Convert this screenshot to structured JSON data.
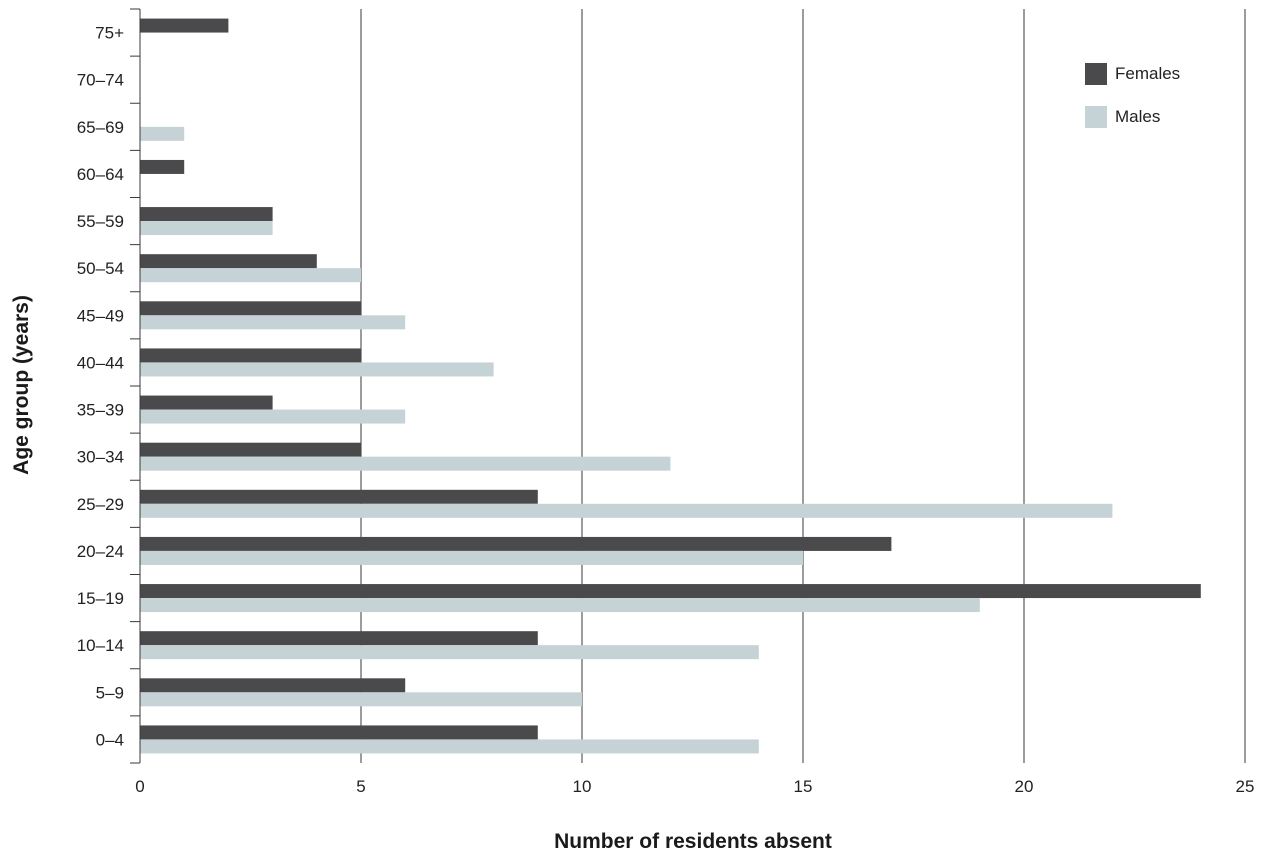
{
  "chart_data": {
    "type": "bar",
    "orientation": "horizontal",
    "xlabel": "Number of residents absent",
    "ylabel": "Age group (years)",
    "xlim": [
      0,
      25
    ],
    "x_ticks": [
      "0",
      "5",
      "10",
      "15",
      "20",
      "25"
    ],
    "grid": "vertical lines at major ticks",
    "legend_position": "top-right",
    "categories": [
      "0–4",
      "5–9",
      "10–14",
      "15–19",
      "20–24",
      "25–29",
      "30–34",
      "35–39",
      "40–44",
      "45–49",
      "50–54",
      "55–59",
      "60–64",
      "65–69",
      "70–74",
      "75+"
    ],
    "series": [
      {
        "name": "Females",
        "color": "#4a4a4c",
        "values": [
          9,
          6,
          9,
          24,
          17,
          9,
          5,
          3,
          5,
          5,
          4,
          3,
          1,
          0,
          0,
          2
        ]
      },
      {
        "name": "Males",
        "color": "#c5d2d6",
        "values": [
          14,
          10,
          14,
          19,
          15,
          22,
          12,
          6,
          8,
          6,
          5,
          3,
          0,
          1,
          0,
          0
        ]
      }
    ]
  }
}
